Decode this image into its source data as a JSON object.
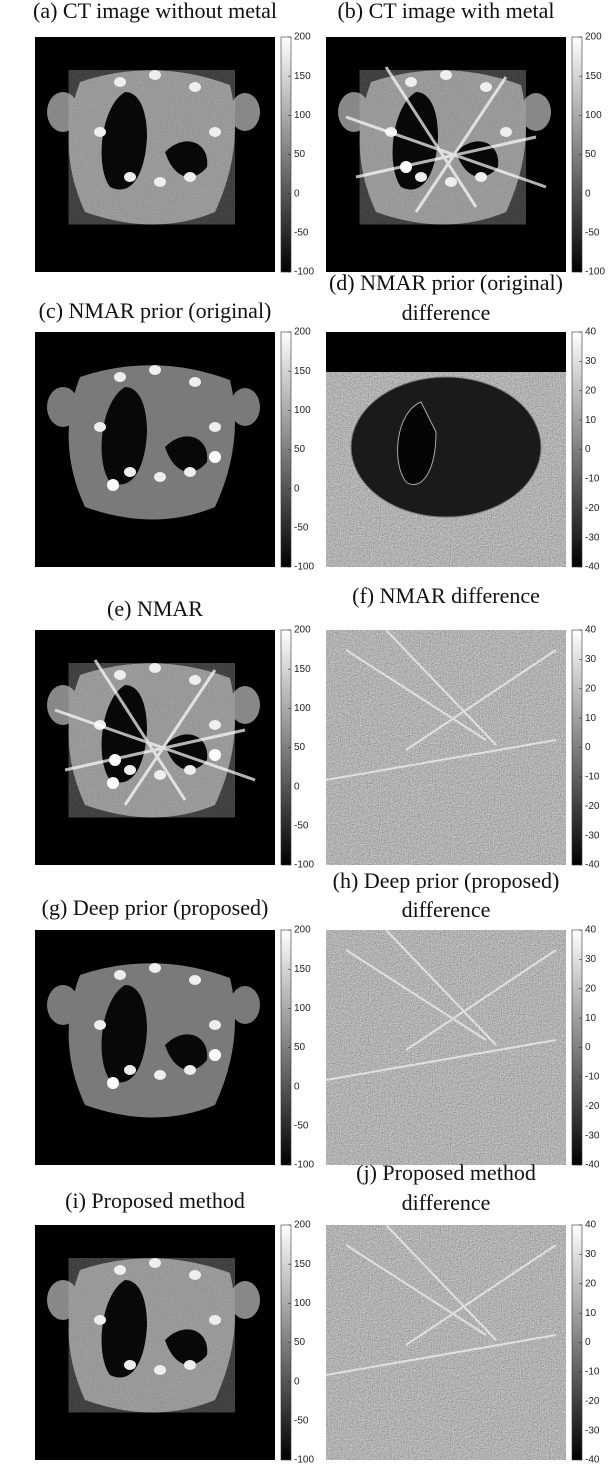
{
  "panels": [
    {
      "title": [
        "(a) CT image without metal"
      ],
      "colorbar": {
        "ticks": [
          200,
          150,
          100,
          50,
          0,
          -50,
          -100
        ]
      }
    },
    {
      "title": [
        "(b) CT image with metal"
      ],
      "colorbar": {
        "ticks": [
          200,
          150,
          100,
          50,
          0,
          -50,
          -100
        ]
      }
    },
    {
      "title": [
        "(c) NMAR prior (original)"
      ],
      "colorbar": {
        "ticks": [
          200,
          150,
          100,
          50,
          0,
          -50,
          -100
        ]
      }
    },
    {
      "title": [
        "(d) NMAR prior (original)",
        "difference"
      ],
      "colorbar": {
        "ticks": [
          40,
          30,
          20,
          10,
          0,
          -10,
          -20,
          -30,
          -40
        ]
      }
    },
    {
      "title": [
        "(e) NMAR"
      ],
      "colorbar": {
        "ticks": [
          200,
          150,
          100,
          50,
          0,
          -50,
          -100
        ]
      }
    },
    {
      "title": [
        "(f) NMAR difference"
      ],
      "colorbar": {
        "ticks": [
          40,
          30,
          20,
          10,
          0,
          -10,
          -20,
          -30,
          -40
        ]
      }
    },
    {
      "title": [
        "(g) Deep prior (proposed)"
      ],
      "colorbar": {
        "ticks": [
          200,
          150,
          100,
          50,
          0,
          -50,
          -100
        ]
      }
    },
    {
      "title": [
        "(h) Deep prior (proposed)",
        "difference"
      ],
      "colorbar": {
        "ticks": [
          40,
          30,
          20,
          10,
          0,
          -10,
          -20,
          -30,
          -40
        ]
      }
    },
    {
      "title": [
        "(i) Proposed method"
      ],
      "colorbar": {
        "ticks": [
          200,
          150,
          100,
          50,
          0,
          -50,
          -100
        ]
      }
    },
    {
      "title": [
        "(j) Proposed method",
        "difference"
      ],
      "colorbar": {
        "ticks": [
          40,
          30,
          20,
          10,
          0,
          -10,
          -20,
          -30,
          -40
        ]
      }
    }
  ]
}
